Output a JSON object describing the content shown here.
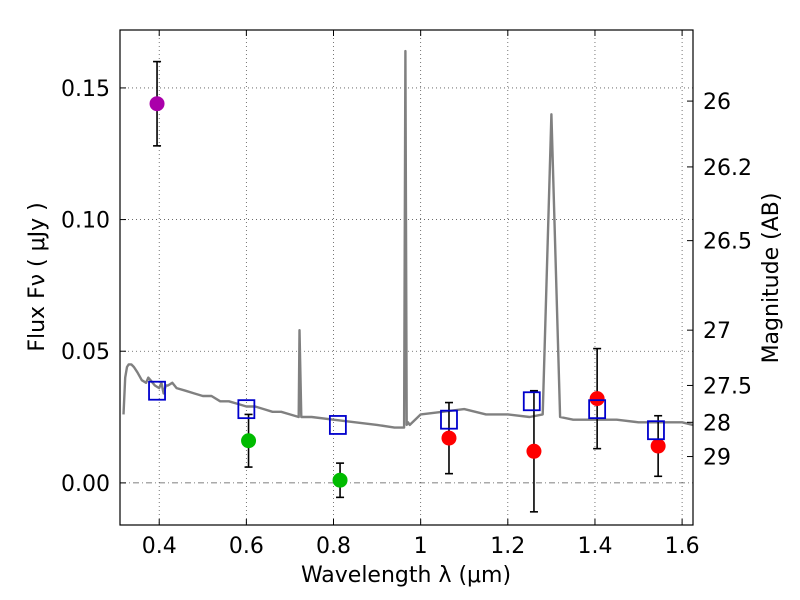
{
  "chart_data": {
    "type": "scatter",
    "title": "",
    "xlabel": "Wavelength  λ (μm)",
    "ylabel": "Flux  Fν  ( μJy )",
    "ylabel_right": "Magnitude (AB)",
    "xlim": [
      0.31,
      1.625
    ],
    "ylim": [
      -0.016,
      0.172
    ],
    "grid": true,
    "x_ticks": [
      0.4,
      0.6,
      0.8,
      1.0,
      1.2,
      1.4,
      1.6
    ],
    "x_tick_labels": [
      "0.4",
      "0.6",
      "0.8",
      "1",
      "1.2",
      "1.4",
      "1.6"
    ],
    "y_ticks": [
      0.0,
      0.05,
      0.1,
      0.15
    ],
    "y_tick_labels": [
      "0.00",
      "0.05",
      "0.10",
      "0.15"
    ],
    "right_ticks": [
      {
        "label": "26",
        "flux": 0.145
      },
      {
        "label": "26.2",
        "flux": 0.12
      },
      {
        "label": "26.5",
        "flux": 0.092
      },
      {
        "label": "27",
        "flux": 0.058
      },
      {
        "label": "27.5",
        "flux": 0.037
      },
      {
        "label": "28",
        "flux": 0.023
      },
      {
        "label": "29",
        "flux": 0.01
      }
    ],
    "colors": {
      "model": "#808080",
      "purple": "#aa00aa",
      "green": "#00bb00",
      "red": "#ff0000",
      "box": "#0000cc",
      "errorbar": "#000000",
      "grid": "#555555"
    },
    "series": [
      {
        "name": "model spectrum",
        "kind": "line",
        "color": "#808080",
        "x": [
          0.318,
          0.322,
          0.326,
          0.33,
          0.336,
          0.342,
          0.35,
          0.36,
          0.37,
          0.375,
          0.38,
          0.39,
          0.4,
          0.405,
          0.41,
          0.415,
          0.42,
          0.43,
          0.44,
          0.46,
          0.48,
          0.5,
          0.52,
          0.54,
          0.56,
          0.58,
          0.6,
          0.62,
          0.64,
          0.66,
          0.68,
          0.7,
          0.72,
          0.722,
          0.726,
          0.73,
          0.75,
          0.8,
          0.85,
          0.9,
          0.94,
          0.962,
          0.965,
          0.968,
          0.971,
          0.975,
          1.0,
          1.05,
          1.1,
          1.15,
          1.2,
          1.25,
          1.28,
          1.3,
          1.32,
          1.35,
          1.4,
          1.45,
          1.5,
          1.55,
          1.6,
          1.625
        ],
        "y": [
          0.026,
          0.04,
          0.044,
          0.045,
          0.045,
          0.044,
          0.042,
          0.039,
          0.038,
          0.04,
          0.039,
          0.037,
          0.036,
          0.038,
          0.034,
          0.037,
          0.037,
          0.038,
          0.036,
          0.035,
          0.034,
          0.033,
          0.033,
          0.031,
          0.031,
          0.03,
          0.029,
          0.029,
          0.028,
          0.027,
          0.027,
          0.026,
          0.025,
          0.058,
          0.025,
          0.025,
          0.025,
          0.024,
          0.023,
          0.022,
          0.021,
          0.021,
          0.164,
          0.022,
          0.023,
          0.022,
          0.026,
          0.027,
          0.028,
          0.026,
          0.026,
          0.025,
          0.026,
          0.14,
          0.025,
          0.024,
          0.024,
          0.024,
          0.023,
          0.023,
          0.023,
          0.022
        ]
      },
      {
        "name": "purple detection",
        "kind": "points",
        "marker": "circle",
        "color": "#aa00aa",
        "points": [
          {
            "x": 0.395,
            "y": 0.144,
            "yerr": 0.016
          }
        ]
      },
      {
        "name": "green detections",
        "kind": "points",
        "marker": "circle",
        "color": "#00bb00",
        "points": [
          {
            "x": 0.605,
            "y": 0.016,
            "yerr": 0.01
          },
          {
            "x": 0.815,
            "y": 0.001,
            "yerr": 0.0065
          }
        ]
      },
      {
        "name": "red detections",
        "kind": "points",
        "marker": "circle",
        "color": "#ff0000",
        "points": [
          {
            "x": 1.065,
            "y": 0.017,
            "yerr": 0.0135
          },
          {
            "x": 1.26,
            "y": 0.012,
            "yerr": 0.023
          },
          {
            "x": 1.405,
            "y": 0.032,
            "yerr": 0.019
          },
          {
            "x": 1.545,
            "y": 0.014,
            "yerr": 0.0115
          }
        ]
      },
      {
        "name": "model photometry",
        "kind": "points",
        "marker": "square-open",
        "color": "#0000cc",
        "points": [
          {
            "x": 0.395,
            "y": 0.035
          },
          {
            "x": 0.6,
            "y": 0.028
          },
          {
            "x": 0.81,
            "y": 0.022
          },
          {
            "x": 1.065,
            "y": 0.024
          },
          {
            "x": 1.255,
            "y": 0.031
          },
          {
            "x": 1.405,
            "y": 0.028
          },
          {
            "x": 1.54,
            "y": 0.02
          }
        ]
      }
    ]
  }
}
